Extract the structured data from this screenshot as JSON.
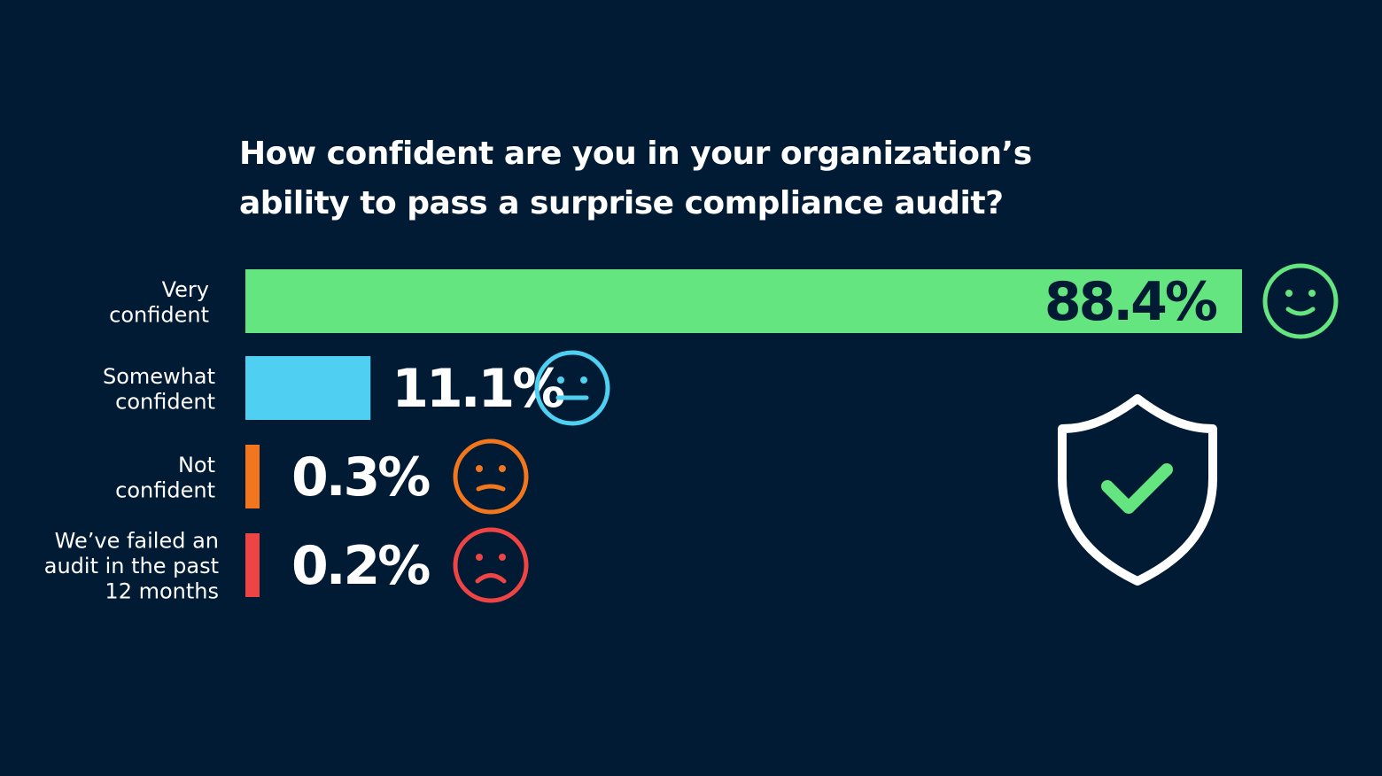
{
  "chart_data": {
    "type": "bar",
    "orientation": "horizontal",
    "title_lines": [
      "How confident are you in your organization’s",
      "ability to pass a surprise compliance audit?"
    ],
    "unit": "%",
    "categories": [
      [
        "Very",
        "confident"
      ],
      [
        "Somewhat",
        "confident"
      ],
      [
        "Not",
        "confident"
      ],
      [
        "We’ve failed an",
        "audit in the past",
        "12 months"
      ]
    ],
    "values": [
      88.4,
      11.1,
      0.3,
      0.2
    ],
    "value_labels": [
      "88.4%",
      "11.1%",
      "0.3%",
      "0.2%"
    ],
    "colors": [
      "#64e57f",
      "#4fd0f2",
      "#f2761d",
      "#ee4444"
    ],
    "value_label_colors": [
      "#001b33",
      "#ffffff",
      "#ffffff",
      "#ffffff"
    ],
    "icons": [
      "happy-face-icon",
      "neutral-face-icon",
      "uneasy-face-icon",
      "sad-face-icon"
    ],
    "decoration": {
      "icon": "shield-check-icon",
      "outline_color": "#ffffff",
      "check_color": "#64e57f"
    }
  }
}
